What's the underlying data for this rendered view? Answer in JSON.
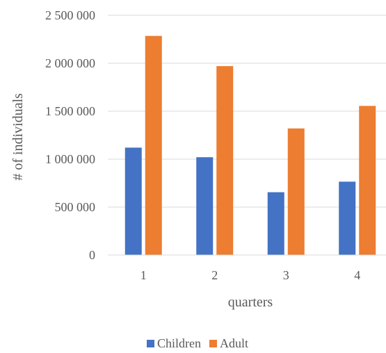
{
  "chart_data": {
    "type": "bar",
    "title": "",
    "xlabel": "quarters",
    "ylabel": "# of individuals",
    "categories": [
      "1",
      "2",
      "3",
      "4"
    ],
    "series": [
      {
        "name": "Children",
        "color": "#4472C4",
        "values": [
          1120000,
          1020000,
          655000,
          765000
        ]
      },
      {
        "name": "Adult",
        "color": "#ED7D31",
        "values": [
          2285000,
          1970000,
          1320000,
          1555000
        ]
      }
    ],
    "ylim": [
      0,
      2500000
    ],
    "yticks": [
      0,
      500000,
      1000000,
      1500000,
      2000000,
      2500000
    ],
    "ytick_labels": [
      "0",
      "500 000",
      "1 000 000",
      "1 500 000",
      "2 000 000",
      "2 500 000"
    ],
    "grid": true,
    "legend_position": "bottom"
  }
}
